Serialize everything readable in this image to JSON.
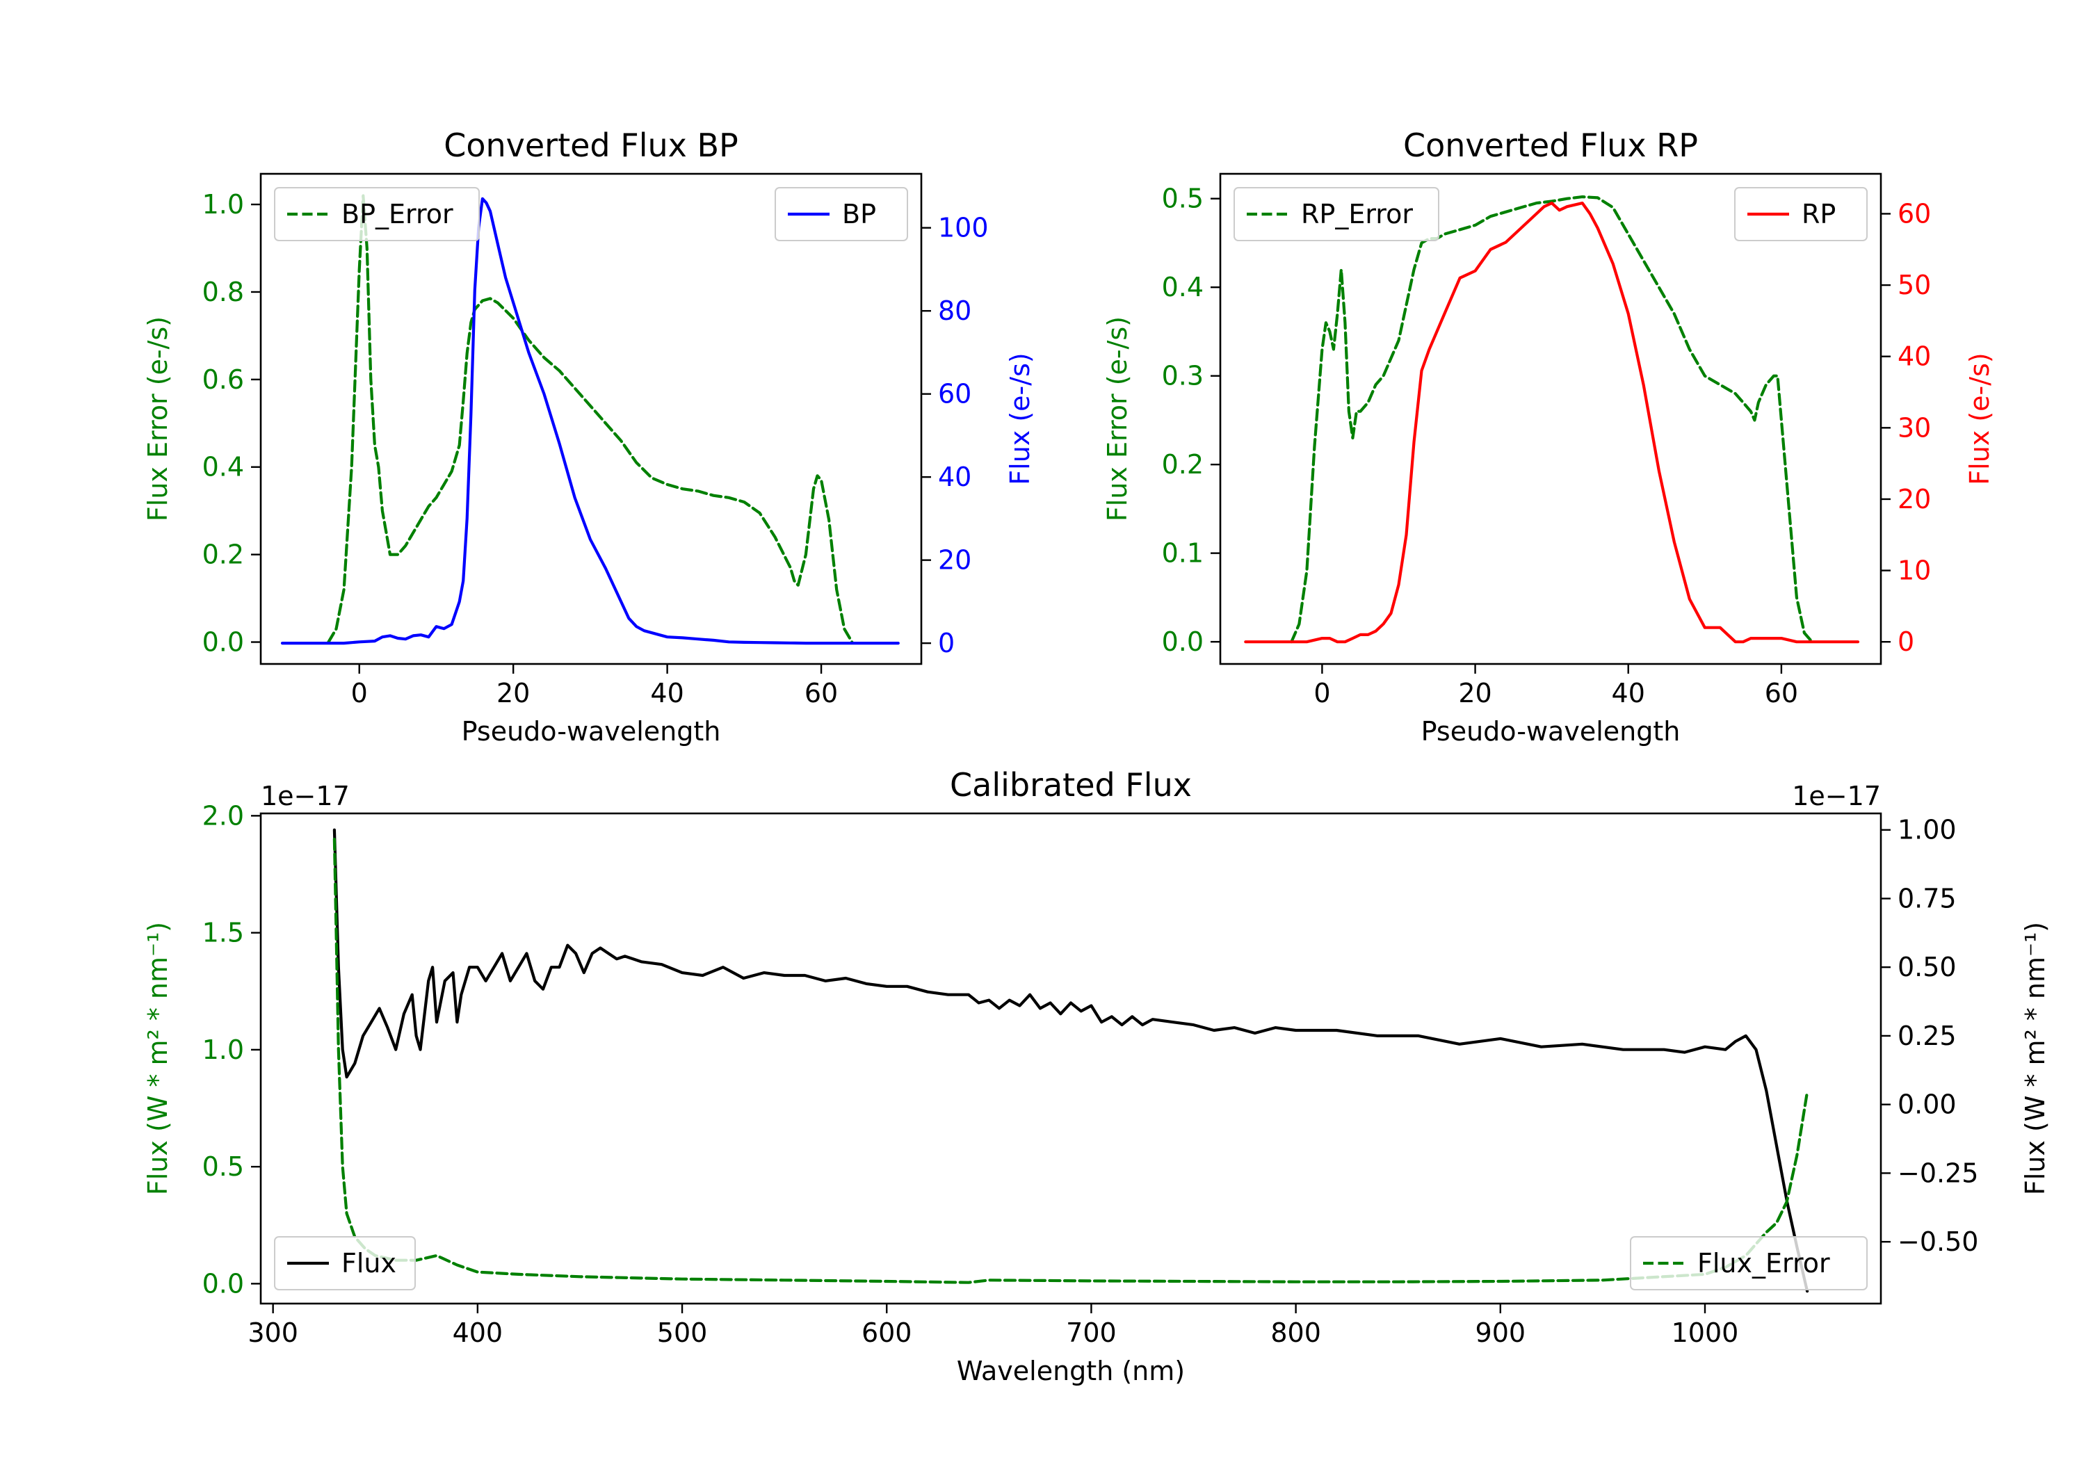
{
  "colors": {
    "error": "#008000",
    "bp": "#0000ff",
    "rp": "#ff0000",
    "flux": "#000000",
    "axis": "#000000"
  },
  "chart_data": [
    {
      "id": "bp",
      "type": "line",
      "title": "Converted Flux BP",
      "xlabel": "Pseudo-wavelength",
      "xlim": [
        -12.8,
        73.0
      ],
      "xticks": [
        "0",
        "20",
        "40",
        "60"
      ],
      "left_axis": {
        "label": "Flux Error (e-/s)",
        "ylim": [
          -0.05,
          1.07
        ],
        "ticks": [
          "0.0",
          "0.2",
          "0.4",
          "0.6",
          "0.8",
          "1.0"
        ]
      },
      "right_axis": {
        "label": "Flux (e-/s)",
        "ylim": [
          -5.0,
          113.0
        ],
        "ticks": [
          "0",
          "20",
          "40",
          "60",
          "80",
          "100"
        ]
      },
      "legend_left": "BP_Error",
      "legend_right": "BP",
      "series": [
        {
          "name": "BP_Error",
          "axis": "left",
          "style": "dashed",
          "x": [
            -4,
            -3,
            -2,
            -1,
            0,
            0.5,
            1,
            1.5,
            2,
            2.5,
            3,
            3.5,
            4,
            4.5,
            5,
            6,
            7,
            8,
            9,
            10,
            11,
            12,
            13,
            13.5,
            14,
            14.5,
            15,
            16,
            17,
            18,
            20,
            22,
            24,
            26,
            28,
            30,
            32,
            34,
            36,
            38,
            40,
            42,
            44,
            46,
            48,
            50,
            52,
            54,
            56,
            56.5,
            57,
            58,
            59,
            59.5,
            60,
            61,
            62,
            63,
            64
          ],
          "y": [
            0.0,
            0.03,
            0.12,
            0.4,
            0.85,
            1.02,
            0.9,
            0.6,
            0.45,
            0.4,
            0.3,
            0.25,
            0.2,
            0.2,
            0.2,
            0.22,
            0.25,
            0.28,
            0.31,
            0.33,
            0.36,
            0.39,
            0.45,
            0.55,
            0.66,
            0.73,
            0.76,
            0.78,
            0.785,
            0.775,
            0.74,
            0.69,
            0.65,
            0.62,
            0.58,
            0.54,
            0.5,
            0.46,
            0.41,
            0.375,
            0.36,
            0.35,
            0.345,
            0.335,
            0.33,
            0.32,
            0.295,
            0.24,
            0.17,
            0.14,
            0.13,
            0.2,
            0.35,
            0.38,
            0.37,
            0.28,
            0.12,
            0.03,
            0.0
          ]
        },
        {
          "name": "BP",
          "axis": "right",
          "style": "solid",
          "x": [
            -10,
            -8,
            -6,
            -4,
            -2,
            0,
            2,
            3,
            4,
            5,
            6,
            7,
            8,
            9,
            10,
            11,
            12,
            13,
            13.5,
            14,
            14.5,
            15,
            15.5,
            16,
            16.5,
            17,
            18,
            19,
            20,
            22,
            24,
            26,
            28,
            30,
            32,
            34,
            35,
            36,
            37,
            38,
            39,
            40,
            42,
            44,
            46,
            48,
            50,
            52,
            54,
            56,
            58,
            60,
            62,
            64,
            66,
            68,
            70
          ],
          "y": [
            0,
            0,
            0,
            0,
            0,
            0.3,
            0.5,
            1.5,
            1.8,
            1.2,
            1.0,
            1.8,
            2.0,
            1.5,
            4.0,
            3.5,
            4.5,
            10,
            15,
            30,
            55,
            85,
            100,
            107,
            106,
            104,
            96,
            88,
            82,
            70,
            60,
            48,
            35,
            25,
            18,
            10,
            6,
            4,
            3,
            2.5,
            2,
            1.5,
            1.3,
            1.0,
            0.7,
            0.3,
            0.2,
            0.15,
            0.1,
            0.05,
            0.0,
            0.0,
            0.0,
            0.0,
            0.0,
            0.0,
            0.0
          ]
        }
      ]
    },
    {
      "id": "rp",
      "type": "line",
      "title": "Converted Flux RP",
      "xlabel": "Pseudo-wavelength",
      "xlim": [
        -13.3,
        73.0
      ],
      "xticks": [
        "0",
        "20",
        "40",
        "60"
      ],
      "left_axis": {
        "label": "Flux Error (e-/s)",
        "ylim": [
          -0.025,
          0.528
        ],
        "ticks": [
          "0.0",
          "0.1",
          "0.2",
          "0.3",
          "0.4",
          "0.5"
        ]
      },
      "right_axis": {
        "label": "Flux (e-/s)",
        "ylim": [
          -3.1,
          65.6
        ],
        "ticks": [
          "0",
          "10",
          "20",
          "30",
          "40",
          "50",
          "60"
        ]
      },
      "legend_left": "RP_Error",
      "legend_right": "RP",
      "series": [
        {
          "name": "RP_Error",
          "axis": "left",
          "style": "dashed",
          "x": [
            -4,
            -3,
            -2,
            -1,
            0,
            0.5,
            1,
            1.5,
            2,
            2.5,
            3,
            3.5,
            4,
            4.5,
            5,
            6,
            7,
            8,
            9,
            10,
            11,
            12,
            13,
            14,
            15,
            16,
            18,
            20,
            22,
            24,
            26,
            28,
            30,
            32,
            34,
            36,
            38,
            40,
            42,
            44,
            46,
            48,
            50,
            52,
            54,
            55,
            56,
            56.5,
            57,
            58,
            59,
            59.5,
            60,
            61,
            62,
            63,
            64
          ],
          "y": [
            0.0,
            0.02,
            0.08,
            0.22,
            0.33,
            0.36,
            0.35,
            0.33,
            0.37,
            0.42,
            0.36,
            0.26,
            0.23,
            0.26,
            0.26,
            0.27,
            0.29,
            0.3,
            0.32,
            0.34,
            0.38,
            0.42,
            0.45,
            0.455,
            0.455,
            0.46,
            0.465,
            0.47,
            0.48,
            0.485,
            0.49,
            0.495,
            0.497,
            0.5,
            0.502,
            0.501,
            0.49,
            0.46,
            0.43,
            0.4,
            0.37,
            0.33,
            0.3,
            0.29,
            0.28,
            0.27,
            0.26,
            0.25,
            0.27,
            0.29,
            0.3,
            0.3,
            0.25,
            0.15,
            0.05,
            0.01,
            0.0
          ]
        },
        {
          "name": "RP",
          "axis": "right",
          "style": "solid",
          "x": [
            -10,
            -8,
            -6,
            -4,
            -2,
            0,
            1,
            2,
            3,
            4,
            5,
            6,
            7,
            8,
            9,
            10,
            11,
            12,
            13,
            14,
            16,
            18,
            20,
            22,
            24,
            26,
            28,
            29,
            30,
            31,
            32,
            34,
            35,
            36,
            38,
            40,
            42,
            44,
            46,
            48,
            50,
            51,
            52,
            53,
            54,
            55,
            56,
            57,
            58,
            59,
            60,
            62,
            64,
            66,
            68,
            70
          ],
          "y": [
            0,
            0,
            0,
            0,
            0,
            0.5,
            0.5,
            0,
            0,
            0.5,
            1,
            1,
            1.5,
            2.5,
            4,
            8,
            15,
            28,
            38,
            41,
            46,
            51,
            52,
            55,
            56,
            58,
            60,
            61,
            61.5,
            60.5,
            61,
            61.5,
            60,
            58,
            53,
            46,
            36,
            24,
            14,
            6,
            2,
            2,
            2,
            1,
            0,
            0,
            0.5,
            0.5,
            0.5,
            0.5,
            0.5,
            0,
            0,
            0,
            0,
            0
          ]
        }
      ]
    },
    {
      "id": "calibrated",
      "type": "line",
      "title": "Calibrated Flux",
      "xlabel": "Wavelength (nm)",
      "xlim": [
        294,
        1086
      ],
      "xticks": [
        "300",
        "400",
        "500",
        "600",
        "700",
        "800",
        "900",
        "1000"
      ],
      "left_axis": {
        "label": "Flux (W * m² * nm⁻¹)",
        "ylim": [
          -0.085,
          2.01
        ],
        "ticks": [
          "0.0",
          "0.5",
          "1.0",
          "1.5",
          "2.0"
        ],
        "offset": "1e−17"
      },
      "right_axis": {
        "label": "Flux (W * m² * nm⁻¹)",
        "ylim": [
          -0.725,
          1.06
        ],
        "ticks": [
          "−0.50",
          "−0.25",
          "0.00",
          "0.25",
          "0.50",
          "0.75",
          "1.00"
        ],
        "offset": "1e−17"
      },
      "legend_left": "Flux",
      "legend_right": "Flux_Error",
      "series": [
        {
          "name": "Flux",
          "axis": "right",
          "style": "solid",
          "x": [
            330,
            332,
            334,
            336,
            340,
            344,
            348,
            352,
            356,
            360,
            364,
            368,
            370,
            372,
            376,
            378,
            380,
            384,
            388,
            390,
            392,
            396,
            400,
            404,
            408,
            412,
            416,
            420,
            424,
            428,
            432,
            436,
            440,
            444,
            448,
            452,
            456,
            460,
            464,
            468,
            472,
            476,
            480,
            490,
            500,
            510,
            520,
            530,
            540,
            550,
            560,
            570,
            580,
            590,
            600,
            610,
            620,
            630,
            640,
            645,
            650,
            655,
            660,
            665,
            670,
            675,
            680,
            685,
            690,
            695,
            700,
            705,
            710,
            715,
            720,
            725,
            730,
            740,
            750,
            760,
            770,
            780,
            790,
            800,
            820,
            840,
            860,
            880,
            900,
            920,
            940,
            960,
            980,
            990,
            1000,
            1010,
            1015,
            1020,
            1025,
            1030,
            1035,
            1040,
            1045,
            1050
          ],
          "y": [
            1.0,
            0.5,
            0.2,
            0.1,
            0.15,
            0.25,
            0.3,
            0.35,
            0.28,
            0.2,
            0.33,
            0.4,
            0.25,
            0.2,
            0.45,
            0.5,
            0.3,
            0.45,
            0.48,
            0.3,
            0.4,
            0.5,
            0.5,
            0.45,
            0.5,
            0.55,
            0.45,
            0.5,
            0.55,
            0.45,
            0.42,
            0.5,
            0.5,
            0.58,
            0.55,
            0.48,
            0.55,
            0.57,
            0.55,
            0.53,
            0.54,
            0.53,
            0.52,
            0.51,
            0.48,
            0.47,
            0.5,
            0.46,
            0.48,
            0.47,
            0.47,
            0.45,
            0.46,
            0.44,
            0.43,
            0.43,
            0.41,
            0.4,
            0.4,
            0.37,
            0.38,
            0.35,
            0.38,
            0.36,
            0.4,
            0.35,
            0.37,
            0.33,
            0.37,
            0.34,
            0.36,
            0.3,
            0.32,
            0.29,
            0.32,
            0.29,
            0.31,
            0.3,
            0.29,
            0.27,
            0.28,
            0.26,
            0.28,
            0.27,
            0.27,
            0.25,
            0.25,
            0.22,
            0.24,
            0.21,
            0.22,
            0.2,
            0.2,
            0.19,
            0.21,
            0.2,
            0.23,
            0.25,
            0.2,
            0.05,
            -0.15,
            -0.35,
            -0.52,
            -0.68
          ]
        },
        {
          "name": "Flux_Error",
          "axis": "left",
          "style": "dashed",
          "x": [
            330,
            332,
            334,
            336,
            340,
            345,
            350,
            360,
            370,
            380,
            390,
            400,
            420,
            450,
            500,
            550,
            600,
            640,
            650,
            700,
            750,
            800,
            850,
            900,
            950,
            1000,
            1010,
            1020,
            1025,
            1030,
            1035,
            1040,
            1045,
            1050
          ],
          "y": [
            1.9,
            1.0,
            0.5,
            0.3,
            0.2,
            0.15,
            0.12,
            0.1,
            0.1,
            0.12,
            0.08,
            0.05,
            0.04,
            0.03,
            0.02,
            0.015,
            0.01,
            0.005,
            0.015,
            0.012,
            0.01,
            0.008,
            0.008,
            0.01,
            0.015,
            0.04,
            0.07,
            0.12,
            0.17,
            0.22,
            0.26,
            0.35,
            0.55,
            0.82
          ]
        }
      ]
    }
  ]
}
